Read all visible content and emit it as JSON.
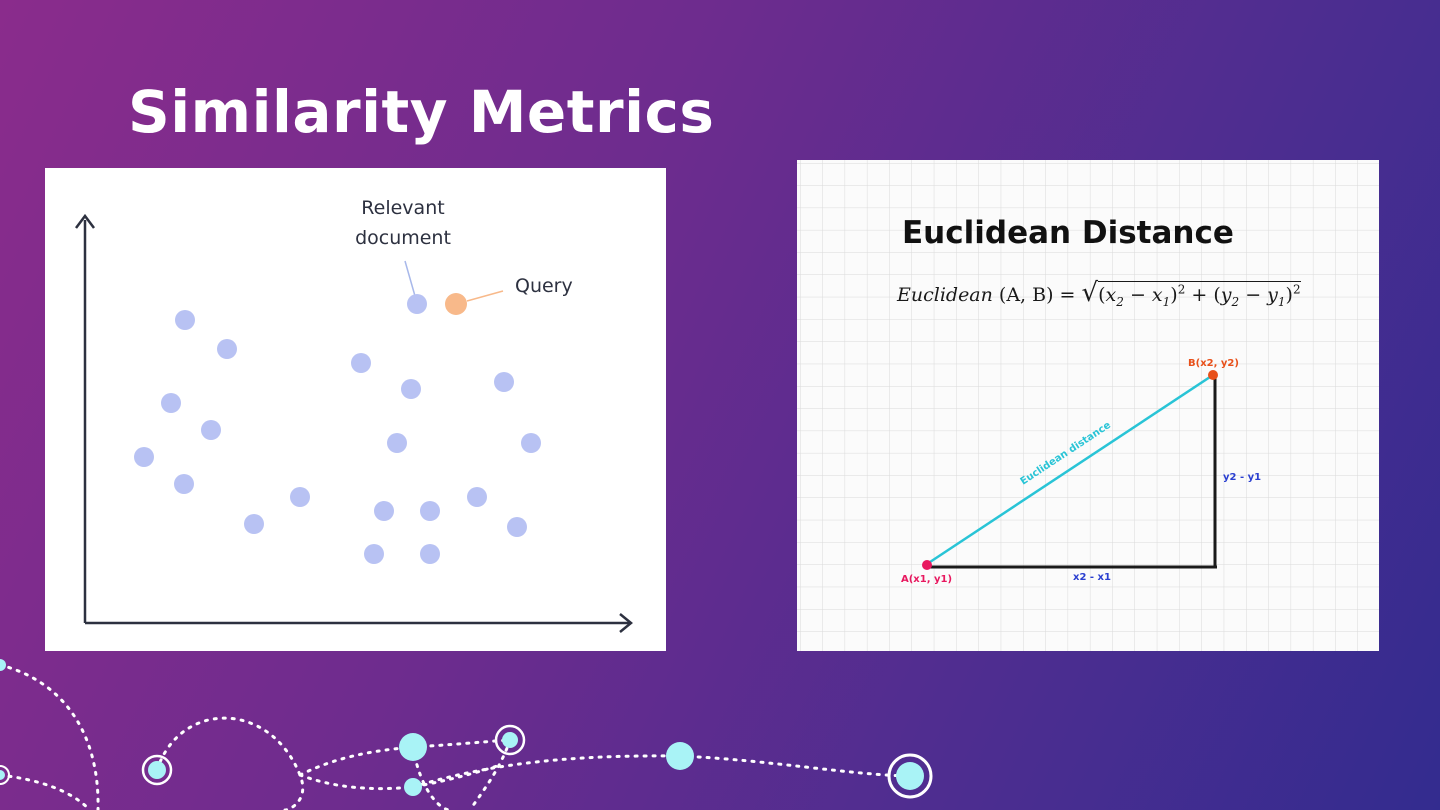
{
  "slide": {
    "title": "Similarity Metrics"
  },
  "left_figure": {
    "label_relevant_line1": "Relevant",
    "label_relevant_line2": "document",
    "label_query": "Query",
    "colors": {
      "points": "#b8c2f3",
      "query": "#f8b98a",
      "axis": "#2d3140"
    },
    "points": [
      [
        140,
        152
      ],
      [
        182,
        181
      ],
      [
        126,
        235
      ],
      [
        166,
        262
      ],
      [
        99,
        289
      ],
      [
        139,
        316
      ],
      [
        209,
        356
      ],
      [
        255,
        329
      ],
      [
        316,
        195
      ],
      [
        366,
        221
      ],
      [
        459,
        214
      ],
      [
        352,
        275
      ],
      [
        486,
        275
      ],
      [
        339,
        343
      ],
      [
        385,
        343
      ],
      [
        432,
        329
      ],
      [
        472,
        359
      ],
      [
        329,
        386
      ],
      [
        385,
        386
      ]
    ],
    "relevant_point": [
      372,
      136
    ],
    "query_point": [
      411,
      136
    ]
  },
  "right_figure": {
    "title": "Euclidean Distance",
    "formula": {
      "lhs": "Euclidean",
      "args": "(A, B) =",
      "radical": "√",
      "x2": "x",
      "x2_sub": "2",
      "minus": "−",
      "x1": "x",
      "x1_sub": "1",
      "plus": "+",
      "y2": "y",
      "y2_sub": "2",
      "y1": "y",
      "y1_sub": "1",
      "exp": "2"
    },
    "point_a_label": "A(x1, y1)",
    "point_b_label": "B(x2, y2)",
    "hypotenuse_label": "Euclidean distance",
    "vertical_label": "y2 - y1",
    "horizontal_label": "x2 - x1",
    "colors": {
      "point_a": "#e8185f",
      "point_b": "#e8501a",
      "hypotenuse": "#29c4d6",
      "legs": "#1a1a1a",
      "leg_labels": "#2a3fd0"
    }
  }
}
